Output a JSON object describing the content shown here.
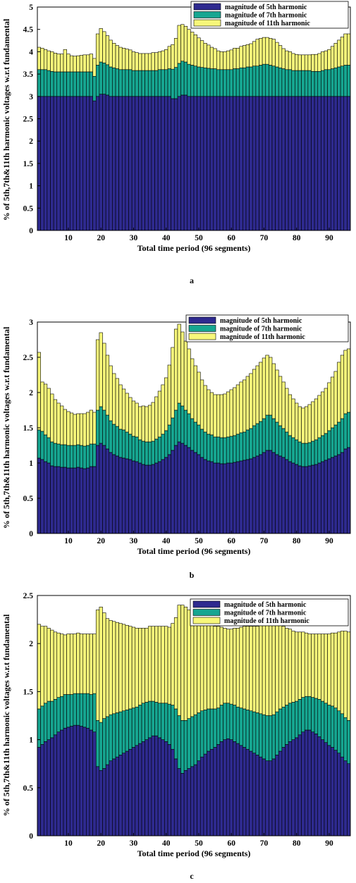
{
  "colors": {
    "h5": "#2e2a8f",
    "h7": "#16a691",
    "h11": "#f7f77a",
    "edge": "#000000"
  },
  "chart_data": [
    {
      "type": "bar",
      "stacked": true,
      "caption": "a",
      "xlabel": "Total time period (96 segments)",
      "ylabel": "% of 5th,7th&11th harmonic voltages w.r.t fundamental",
      "ylim": [
        0,
        5
      ],
      "yticks": [
        "0",
        "0.5",
        "1",
        "1.5",
        "2",
        "2.5",
        "3",
        "3.5",
        "4",
        "4.5",
        "5"
      ],
      "xticks": [
        "10",
        "20",
        "30",
        "40",
        "50",
        "60",
        "70",
        "80",
        "90"
      ],
      "legend_position": "top-right",
      "series": [
        {
          "name": "magnitude of 5th harmonic",
          "values": [
            3.0,
            3.0,
            3.0,
            3.0,
            3.0,
            3.0,
            3.0,
            3.0,
            3.0,
            3.0,
            3.0,
            3.0,
            3.0,
            3.0,
            3.0,
            3.0,
            3.0,
            2.9,
            3.0,
            3.05,
            3.05,
            3.03,
            3.0,
            3.0,
            3.0,
            3.0,
            3.0,
            3.0,
            3.0,
            3.0,
            3.0,
            3.0,
            3.0,
            3.0,
            3.0,
            3.0,
            3.0,
            3.0,
            3.0,
            3.0,
            3.0,
            2.95,
            2.95,
            3.0,
            3.03,
            3.03,
            3.0,
            3.0,
            3.0,
            3.0,
            3.0,
            3.0,
            3.0,
            3.0,
            3.0,
            3.0,
            3.0,
            3.0,
            3.0,
            3.0,
            3.0,
            3.0,
            3.0,
            3.0,
            3.0,
            3.0,
            3.0,
            3.0,
            3.0,
            3.0,
            3.0,
            3.0,
            3.0,
            3.0,
            3.0,
            3.0,
            3.0,
            3.0,
            3.0,
            3.0,
            3.0,
            3.0,
            3.0,
            3.0,
            3.0,
            3.0,
            3.0,
            3.0,
            3.0,
            3.0,
            3.0,
            3.0,
            3.0,
            3.0,
            3.0,
            3.0
          ]
        },
        {
          "name": "magnitude of 7th harmonic",
          "values": [
            0.6,
            0.6,
            0.6,
            0.58,
            0.56,
            0.55,
            0.55,
            0.55,
            0.55,
            0.55,
            0.55,
            0.55,
            0.55,
            0.55,
            0.55,
            0.55,
            0.55,
            0.55,
            0.7,
            0.72,
            0.7,
            0.68,
            0.66,
            0.64,
            0.62,
            0.6,
            0.6,
            0.6,
            0.6,
            0.58,
            0.58,
            0.58,
            0.58,
            0.58,
            0.58,
            0.58,
            0.58,
            0.6,
            0.6,
            0.6,
            0.62,
            0.66,
            0.7,
            0.74,
            0.76,
            0.74,
            0.72,
            0.7,
            0.68,
            0.66,
            0.65,
            0.64,
            0.63,
            0.62,
            0.62,
            0.6,
            0.6,
            0.6,
            0.6,
            0.6,
            0.62,
            0.62,
            0.64,
            0.64,
            0.66,
            0.66,
            0.68,
            0.68,
            0.7,
            0.72,
            0.72,
            0.7,
            0.68,
            0.66,
            0.64,
            0.62,
            0.6,
            0.6,
            0.58,
            0.58,
            0.58,
            0.58,
            0.58,
            0.58,
            0.56,
            0.56,
            0.56,
            0.58,
            0.6,
            0.6,
            0.62,
            0.64,
            0.66,
            0.68,
            0.7,
            0.7
          ]
        },
        {
          "name": "magnitude of 11th harmonic",
          "values": [
            0.5,
            0.48,
            0.45,
            0.44,
            0.44,
            0.42,
            0.4,
            0.4,
            0.5,
            0.4,
            0.36,
            0.35,
            0.36,
            0.37,
            0.38,
            0.38,
            0.4,
            0.4,
            0.7,
            0.75,
            0.7,
            0.65,
            0.6,
            0.55,
            0.52,
            0.5,
            0.48,
            0.46,
            0.44,
            0.42,
            0.4,
            0.38,
            0.38,
            0.38,
            0.38,
            0.4,
            0.4,
            0.4,
            0.42,
            0.45,
            0.5,
            0.55,
            0.65,
            0.85,
            0.82,
            0.8,
            0.78,
            0.74,
            0.7,
            0.65,
            0.6,
            0.55,
            0.52,
            0.48,
            0.45,
            0.42,
            0.4,
            0.4,
            0.42,
            0.44,
            0.46,
            0.46,
            0.48,
            0.5,
            0.5,
            0.52,
            0.55,
            0.6,
            0.6,
            0.6,
            0.6,
            0.6,
            0.6,
            0.55,
            0.5,
            0.45,
            0.42,
            0.4,
            0.38,
            0.36,
            0.35,
            0.35,
            0.35,
            0.35,
            0.38,
            0.38,
            0.4,
            0.42,
            0.42,
            0.45,
            0.5,
            0.55,
            0.6,
            0.65,
            0.7,
            0.7
          ]
        }
      ]
    },
    {
      "type": "bar",
      "stacked": true,
      "caption": "b",
      "xlabel": "Total time period (96 segments)",
      "ylabel": "% of 5th,7th&11th harmonic voltages w.r.t fundamental",
      "ylim": [
        0,
        3
      ],
      "yticks": [
        "0",
        "0.5",
        "1",
        "1.5",
        "2",
        "2.5",
        "3"
      ],
      "xticks": [
        "10",
        "20",
        "30",
        "40",
        "50",
        "60",
        "70",
        "80",
        "90"
      ],
      "legend_position": "top-right",
      "series": [
        {
          "name": "magnitude of 5th harmonic",
          "values": [
            1.07,
            1.05,
            1.02,
            1.0,
            0.96,
            0.95,
            0.95,
            0.94,
            0.94,
            0.93,
            0.93,
            0.93,
            0.94,
            0.93,
            0.92,
            0.93,
            0.95,
            0.95,
            1.25,
            1.28,
            1.25,
            1.2,
            1.15,
            1.12,
            1.1,
            1.08,
            1.07,
            1.06,
            1.05,
            1.03,
            1.02,
            1.0,
            0.98,
            0.97,
            0.97,
            0.98,
            1.0,
            1.02,
            1.05,
            1.08,
            1.12,
            1.18,
            1.25,
            1.3,
            1.28,
            1.25,
            1.22,
            1.18,
            1.15,
            1.12,
            1.08,
            1.05,
            1.03,
            1.02,
            1.0,
            1.0,
            0.99,
            0.99,
            1.0,
            1.0,
            1.01,
            1.02,
            1.03,
            1.04,
            1.05,
            1.06,
            1.08,
            1.1,
            1.12,
            1.15,
            1.18,
            1.18,
            1.15,
            1.12,
            1.1,
            1.08,
            1.05,
            1.02,
            1.0,
            0.98,
            0.96,
            0.95,
            0.95,
            0.96,
            0.97,
            0.98,
            1.0,
            1.02,
            1.04,
            1.06,
            1.08,
            1.1,
            1.12,
            1.15,
            1.2,
            1.22
          ]
        },
        {
          "name": "magnitude of 7th harmonic",
          "values": [
            0.4,
            0.4,
            0.38,
            0.36,
            0.34,
            0.33,
            0.32,
            0.32,
            0.32,
            0.32,
            0.32,
            0.32,
            0.32,
            0.32,
            0.32,
            0.32,
            0.32,
            0.32,
            0.5,
            0.52,
            0.5,
            0.48,
            0.45,
            0.43,
            0.42,
            0.4,
            0.4,
            0.38,
            0.36,
            0.35,
            0.35,
            0.33,
            0.33,
            0.33,
            0.33,
            0.33,
            0.34,
            0.35,
            0.36,
            0.38,
            0.42,
            0.46,
            0.5,
            0.55,
            0.53,
            0.5,
            0.48,
            0.45,
            0.43,
            0.42,
            0.4,
            0.39,
            0.38,
            0.38,
            0.37,
            0.37,
            0.37,
            0.37,
            0.37,
            0.38,
            0.38,
            0.39,
            0.4,
            0.4,
            0.42,
            0.43,
            0.45,
            0.46,
            0.47,
            0.48,
            0.5,
            0.5,
            0.48,
            0.46,
            0.43,
            0.41,
            0.39,
            0.37,
            0.36,
            0.35,
            0.34,
            0.33,
            0.33,
            0.33,
            0.34,
            0.35,
            0.36,
            0.37,
            0.38,
            0.4,
            0.42,
            0.44,
            0.46,
            0.48,
            0.5,
            0.5
          ]
        },
        {
          "name": "magnitude of 11th harmonic",
          "values": [
            1.1,
            0.7,
            0.72,
            0.7,
            0.68,
            0.62,
            0.58,
            0.55,
            0.5,
            0.48,
            0.46,
            0.44,
            0.44,
            0.45,
            0.46,
            0.47,
            0.48,
            0.45,
            1.0,
            1.05,
            0.95,
            0.85,
            0.78,
            0.72,
            0.68,
            0.63,
            0.58,
            0.55,
            0.52,
            0.5,
            0.48,
            0.47,
            0.5,
            0.5,
            0.52,
            0.55,
            0.6,
            0.65,
            0.7,
            0.75,
            0.85,
            1.0,
            1.15,
            1.12,
            1.05,
            0.98,
            0.92,
            0.85,
            0.8,
            0.75,
            0.7,
            0.66,
            0.63,
            0.6,
            0.6,
            0.6,
            0.61,
            0.62,
            0.64,
            0.66,
            0.68,
            0.7,
            0.72,
            0.74,
            0.76,
            0.78,
            0.8,
            0.82,
            0.84,
            0.86,
            0.85,
            0.82,
            0.78,
            0.74,
            0.7,
            0.66,
            0.62,
            0.58,
            0.55,
            0.52,
            0.5,
            0.5,
            0.52,
            0.54,
            0.56,
            0.58,
            0.6,
            0.62,
            0.64,
            0.68,
            0.72,
            0.76,
            0.85,
            0.9,
            0.9,
            0.9
          ]
        }
      ]
    },
    {
      "type": "bar",
      "stacked": true,
      "caption": "c",
      "xlabel": "Total time period (96 segments)",
      "ylabel": "% of 5th,7th&11th harmonic voltages w.r.t fundamental",
      "ylim": [
        0,
        2.5
      ],
      "yticks": [
        "0",
        "0.5",
        "1",
        "1.5",
        "2",
        "2.5"
      ],
      "xticks": [
        "10",
        "20",
        "30",
        "40",
        "50",
        "60",
        "70",
        "80",
        "90"
      ],
      "legend_position": "top-right",
      "series": [
        {
          "name": "magnitude of 5th harmonic",
          "values": [
            0.92,
            0.95,
            0.98,
            1.0,
            1.02,
            1.05,
            1.08,
            1.1,
            1.12,
            1.13,
            1.14,
            1.15,
            1.15,
            1.14,
            1.13,
            1.12,
            1.1,
            1.08,
            0.72,
            0.68,
            0.7,
            0.74,
            0.78,
            0.8,
            0.82,
            0.84,
            0.86,
            0.88,
            0.9,
            0.92,
            0.94,
            0.96,
            0.98,
            1.0,
            1.02,
            1.04,
            1.04,
            1.02,
            1.0,
            0.98,
            0.95,
            0.9,
            0.8,
            0.7,
            0.65,
            0.68,
            0.7,
            0.72,
            0.74,
            0.78,
            0.82,
            0.85,
            0.88,
            0.9,
            0.92,
            0.95,
            0.98,
            1.0,
            1.01,
            1.0,
            0.98,
            0.96,
            0.94,
            0.92,
            0.9,
            0.88,
            0.86,
            0.84,
            0.82,
            0.8,
            0.78,
            0.78,
            0.8,
            0.84,
            0.88,
            0.92,
            0.95,
            0.98,
            1.0,
            1.02,
            1.05,
            1.08,
            1.1,
            1.1,
            1.08,
            1.06,
            1.03,
            1.0,
            0.97,
            0.94,
            0.92,
            0.89,
            0.86,
            0.82,
            0.78,
            0.75
          ]
        },
        {
          "name": "magnitude of 7th harmonic",
          "values": [
            0.4,
            0.4,
            0.4,
            0.4,
            0.38,
            0.37,
            0.36,
            0.35,
            0.35,
            0.34,
            0.33,
            0.33,
            0.33,
            0.34,
            0.35,
            0.36,
            0.37,
            0.4,
            0.48,
            0.5,
            0.52,
            0.5,
            0.48,
            0.47,
            0.46,
            0.45,
            0.44,
            0.43,
            0.42,
            0.41,
            0.4,
            0.4,
            0.4,
            0.39,
            0.38,
            0.36,
            0.35,
            0.36,
            0.38,
            0.4,
            0.42,
            0.46,
            0.52,
            0.55,
            0.55,
            0.52,
            0.52,
            0.52,
            0.52,
            0.5,
            0.48,
            0.46,
            0.44,
            0.42,
            0.4,
            0.38,
            0.38,
            0.38,
            0.37,
            0.37,
            0.38,
            0.38,
            0.39,
            0.4,
            0.41,
            0.42,
            0.43,
            0.44,
            0.45,
            0.46,
            0.47,
            0.47,
            0.46,
            0.45,
            0.44,
            0.42,
            0.41,
            0.4,
            0.39,
            0.38,
            0.37,
            0.36,
            0.35,
            0.35,
            0.36,
            0.37,
            0.39,
            0.4,
            0.41,
            0.42,
            0.43,
            0.44,
            0.44,
            0.45,
            0.45,
            0.45
          ]
        },
        {
          "name": "magnitude of 11th harmonic",
          "values": [
            0.88,
            0.83,
            0.8,
            0.76,
            0.74,
            0.7,
            0.67,
            0.65,
            0.62,
            0.63,
            0.63,
            0.62,
            0.63,
            0.62,
            0.62,
            0.62,
            0.63,
            0.62,
            1.15,
            1.2,
            1.1,
            1.02,
            0.98,
            0.96,
            0.94,
            0.92,
            0.9,
            0.88,
            0.86,
            0.84,
            0.82,
            0.8,
            0.78,
            0.77,
            0.78,
            0.78,
            0.79,
            0.8,
            0.8,
            0.8,
            0.8,
            0.85,
            0.95,
            1.15,
            1.2,
            1.18,
            1.13,
            1.08,
            1.03,
            0.98,
            0.94,
            0.92,
            0.9,
            0.88,
            0.86,
            0.85,
            0.81,
            0.78,
            0.77,
            0.78,
            0.8,
            0.82,
            0.84,
            0.86,
            0.87,
            0.88,
            0.89,
            0.9,
            0.92,
            0.94,
            1.02,
            1.03,
            1.0,
            0.94,
            0.88,
            0.84,
            0.8,
            0.77,
            0.74,
            0.72,
            0.7,
            0.68,
            0.66,
            0.65,
            0.66,
            0.67,
            0.68,
            0.7,
            0.72,
            0.74,
            0.76,
            0.78,
            0.82,
            0.86,
            0.9,
            0.92
          ]
        }
      ]
    }
  ]
}
